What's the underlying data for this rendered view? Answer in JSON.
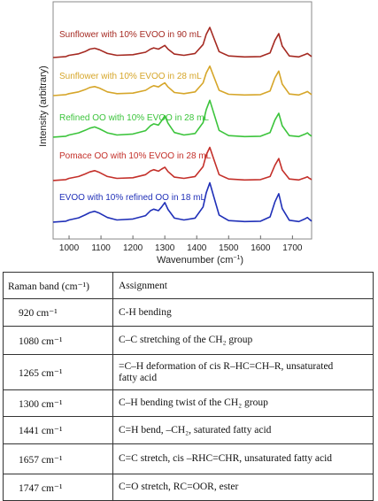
{
  "chart_data": {
    "type": "line",
    "xlabel": "Wavenumber (cm",
    "xlabel_sup": "−1",
    "xlabel_close": ")",
    "ylabel": "Intensity (arbitrary)",
    "xlim": [
      950,
      1760
    ],
    "x_ticks": [
      "1000",
      "1100",
      "1200",
      "1300",
      "1400",
      "1500",
      "1600",
      "1700"
    ],
    "grid": false,
    "legend": "inline labels above each trace",
    "x": [
      950,
      990,
      1000,
      1030,
      1050,
      1065,
      1080,
      1095,
      1120,
      1150,
      1200,
      1240,
      1255,
      1265,
      1280,
      1290,
      1300,
      1310,
      1330,
      1360,
      1395,
      1420,
      1430,
      1441,
      1452,
      1470,
      1500,
      1550,
      1600,
      1630,
      1645,
      1657,
      1668,
      1690,
      1720,
      1740,
      1747,
      1752,
      1760
    ],
    "series": [
      {
        "name": "Sunflower with 10% EVOO in 90 mL",
        "color": "#a52a22",
        "values": [
          0.03,
          0.06,
          0.1,
          0.15,
          0.22,
          0.3,
          0.33,
          0.28,
          0.16,
          0.1,
          0.12,
          0.2,
          0.3,
          0.34,
          0.3,
          0.36,
          0.42,
          0.3,
          0.14,
          0.1,
          0.16,
          0.45,
          0.78,
          1.0,
          0.7,
          0.22,
          0.08,
          0.05,
          0.06,
          0.18,
          0.58,
          0.8,
          0.4,
          0.08,
          0.05,
          0.13,
          0.16,
          0.12,
          0.06
        ]
      },
      {
        "name": "Sunflower with 10% EVOO in 28 mL",
        "color": "#d6a62a",
        "values": [
          0.03,
          0.06,
          0.09,
          0.15,
          0.22,
          0.29,
          0.32,
          0.27,
          0.15,
          0.09,
          0.11,
          0.2,
          0.3,
          0.35,
          0.31,
          0.38,
          0.44,
          0.31,
          0.13,
          0.09,
          0.15,
          0.44,
          0.76,
          0.98,
          0.68,
          0.2,
          0.07,
          0.05,
          0.06,
          0.18,
          0.6,
          0.82,
          0.4,
          0.08,
          0.05,
          0.13,
          0.16,
          0.12,
          0.06
        ]
      },
      {
        "name": "Refined OO with 10% EVOO in 28 mL",
        "color": "#3cc43c",
        "values": [
          0.03,
          0.06,
          0.1,
          0.17,
          0.25,
          0.32,
          0.36,
          0.3,
          0.17,
          0.1,
          0.13,
          0.24,
          0.4,
          0.46,
          0.42,
          0.56,
          0.72,
          0.48,
          0.18,
          0.1,
          0.15,
          0.5,
          0.92,
          1.22,
          0.85,
          0.25,
          0.08,
          0.05,
          0.06,
          0.18,
          0.58,
          0.8,
          0.4,
          0.08,
          0.05,
          0.13,
          0.17,
          0.12,
          0.06
        ]
      },
      {
        "name": "Pomace OO with 10% EVOO in 28 mL",
        "color": "#c4302a",
        "values": [
          0.03,
          0.06,
          0.1,
          0.16,
          0.24,
          0.31,
          0.35,
          0.29,
          0.16,
          0.1,
          0.12,
          0.22,
          0.34,
          0.38,
          0.33,
          0.4,
          0.46,
          0.32,
          0.14,
          0.1,
          0.16,
          0.48,
          0.86,
          1.1,
          0.76,
          0.22,
          0.08,
          0.05,
          0.06,
          0.16,
          0.52,
          0.74,
          0.37,
          0.08,
          0.05,
          0.12,
          0.15,
          0.11,
          0.06
        ]
      },
      {
        "name": "EVOO with 10% refined OO in 18 mL",
        "color": "#2030b8",
        "values": [
          0.03,
          0.06,
          0.1,
          0.17,
          0.26,
          0.34,
          0.38,
          0.32,
          0.18,
          0.1,
          0.13,
          0.24,
          0.4,
          0.45,
          0.4,
          0.52,
          0.66,
          0.44,
          0.16,
          0.1,
          0.16,
          0.52,
          0.98,
          1.3,
          0.9,
          0.26,
          0.08,
          0.05,
          0.06,
          0.2,
          0.68,
          0.95,
          0.47,
          0.09,
          0.05,
          0.14,
          0.18,
          0.13,
          0.06
        ]
      }
    ]
  },
  "table": {
    "headers": [
      "Raman band (cm⁻¹)",
      "Assignment"
    ],
    "rows": [
      {
        "band": "920 cm⁻¹",
        "assignment": [
          "C-H bending"
        ]
      },
      {
        "band": "1080 cm⁻¹",
        "assignment": [
          "C–C stretching of the CH₂ group"
        ]
      },
      {
        "band": "1265 cm⁻¹",
        "assignment": [
          "=C–H deformation of cis R–HC=CH–R, unsaturated",
          "fatty acid"
        ]
      },
      {
        "band": "1300 cm⁻¹",
        "assignment": [
          "C–H bending twist of the CH₂ group"
        ]
      },
      {
        "band": "1441 cm⁻¹",
        "assignment": [
          "C=H bend, –CH₂, saturated fatty acid"
        ]
      },
      {
        "band": "1657 cm⁻¹",
        "assignment": [
          "C=C stretch, cis –RHC=CHR, unsaturated fatty acid"
        ]
      },
      {
        "band": "1747 cm⁻¹",
        "assignment": [
          "C=O stretch, RC=OOR, ester"
        ]
      }
    ]
  }
}
